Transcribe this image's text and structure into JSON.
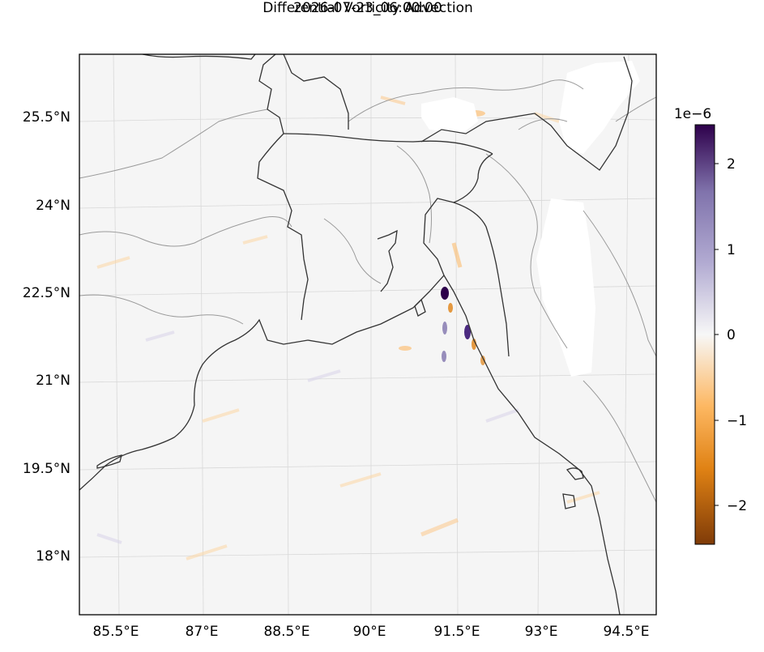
{
  "title": "Differential Vorticity Advection",
  "subtitle": "2026-07-23_06:00:00",
  "map": {
    "lat_labels": [
      "25.5°N",
      "24°N",
      "22.5°N",
      "21°N",
      "19.5°N",
      "18°N"
    ],
    "lon_labels": [
      "85.5°E",
      "87°E",
      "88.5°E",
      "90°E",
      "91.5°E",
      "93°E",
      "94.5°E"
    ],
    "land_outline_color": "#333333",
    "border_color": "#9a9a9a",
    "background_color": "#f5f5f5"
  },
  "colorbar": {
    "scale_label": "1e−6",
    "ticks": [
      "2",
      "1",
      "0",
      "−1",
      "−2"
    ],
    "range": [
      -2.5,
      2.5
    ],
    "colormap": "PuOr",
    "colors": [
      "#7f3b08",
      "#e08214",
      "#fdb863",
      "#f7f7f7",
      "#b2abd2",
      "#8073ac",
      "#2d004b"
    ]
  }
}
